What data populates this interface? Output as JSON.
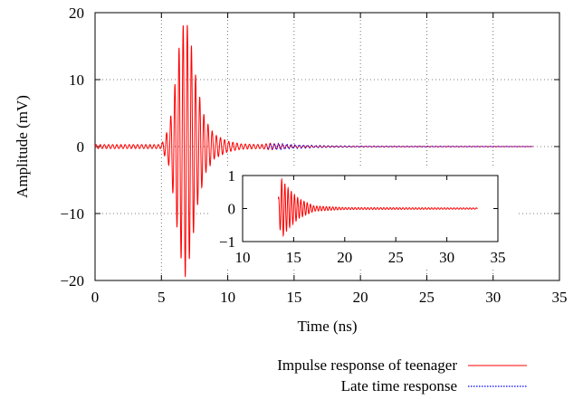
{
  "chart_data": [
    {
      "type": "line",
      "title": "",
      "xlabel": "Time (ns)",
      "ylabel": "Amplitude (mV)",
      "xlim": [
        0,
        35
      ],
      "ylim": [
        -20,
        20
      ],
      "xticks": [
        0,
        5,
        10,
        15,
        20,
        25,
        30,
        35
      ],
      "yticks": [
        -20,
        -10,
        0,
        10,
        20
      ],
      "grid": true,
      "legend_position": "below",
      "series": [
        {
          "name": "Impulse response of teenager",
          "color": "#ff0000",
          "style": "solid",
          "x_range": [
            0,
            33
          ],
          "envelope": [
            {
              "t": 5.0,
              "a": 0.3
            },
            {
              "t": 5.6,
              "a": 3.0
            },
            {
              "t": 6.0,
              "a": 9.0
            },
            {
              "t": 6.4,
              "a": 16.0
            },
            {
              "t": 6.8,
              "a": 19.5
            },
            {
              "t": 7.2,
              "a": 16.0
            },
            {
              "t": 7.7,
              "a": 9.0
            },
            {
              "t": 8.3,
              "a": 4.0
            },
            {
              "t": 9.0,
              "a": 1.8
            },
            {
              "t": 10.0,
              "a": 0.8
            },
            {
              "t": 11.0,
              "a": 0.4
            },
            {
              "t": 12.5,
              "a": 0.3
            },
            {
              "t": 13.2,
              "a": 0.5
            },
            {
              "t": 13.8,
              "a": 0.35
            },
            {
              "t": 15.0,
              "a": 0.2
            },
            {
              "t": 17.0,
              "a": 0.1
            },
            {
              "t": 20.0,
              "a": 0.05
            },
            {
              "t": 33.0,
              "a": 0.02
            }
          ]
        },
        {
          "name": "Late time response",
          "color": "#0000ff",
          "style": "dotted",
          "x_range": [
            13,
            33
          ],
          "envelope": [
            {
              "t": 13.0,
              "a": 0.3
            },
            {
              "t": 13.8,
              "a": 0.5
            },
            {
              "t": 15.0,
              "a": 0.3
            },
            {
              "t": 17.0,
              "a": 0.15
            },
            {
              "t": 20.0,
              "a": 0.06
            },
            {
              "t": 33.0,
              "a": 0.02
            }
          ]
        }
      ]
    },
    {
      "type": "line",
      "role": "inset",
      "title": "",
      "xlabel": "",
      "ylabel": "",
      "xlim": [
        10,
        35
      ],
      "ylim": [
        -1,
        1
      ],
      "xticks": [
        10,
        15,
        20,
        25,
        30,
        35
      ],
      "yticks": [
        -1,
        0,
        1
      ],
      "grid": false,
      "series": [
        {
          "color": "#ff0000",
          "style": "solid",
          "x_range": [
            13.5,
            33
          ],
          "envelope": [
            {
              "t": 13.5,
              "a": 0.3
            },
            {
              "t": 13.8,
              "a": 0.9
            },
            {
              "t": 14.5,
              "a": 0.6
            },
            {
              "t": 15.5,
              "a": 0.3
            },
            {
              "t": 17.0,
              "a": 0.08
            },
            {
              "t": 20.0,
              "a": 0.03
            },
            {
              "t": 33.0,
              "a": 0.02
            }
          ]
        }
      ]
    }
  ]
}
